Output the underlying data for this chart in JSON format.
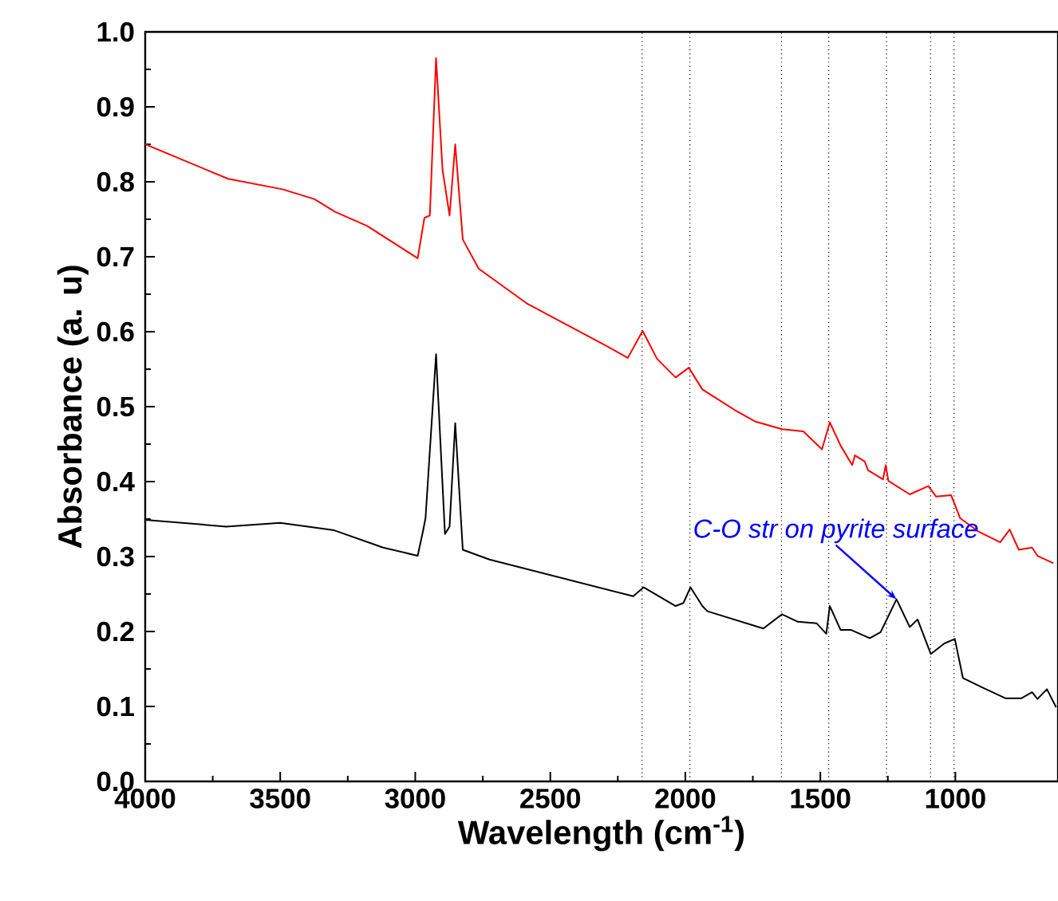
{
  "chart_data": {
    "type": "line",
    "xlabel": "Wavelength (cm$^{-1}$)",
    "ylabel": "Absorbance (a. u)",
    "xlim": [
      4000,
      620
    ],
    "ylim": [
      0,
      1
    ],
    "xticks": [
      4000,
      3500,
      3000,
      2500,
      2000,
      1500,
      1000
    ],
    "yticks": [
      {
        "value": 0,
        "label": "0.0"
      },
      {
        "value": 0.1,
        "label": "0.1"
      },
      {
        "value": 0.2,
        "label": "0.2"
      },
      {
        "value": 0.3,
        "label": "0.3"
      },
      {
        "value": 0.4,
        "label": "0.4"
      },
      {
        "value": 0.5,
        "label": "0.5"
      },
      {
        "value": 0.6,
        "label": "0.6"
      },
      {
        "value": 0.7,
        "label": "0.7"
      },
      {
        "value": 0.8,
        "label": "0.8"
      },
      {
        "value": 0.9,
        "label": "0.9"
      },
      {
        "value": 1.0,
        "label": "1.0"
      }
    ],
    "grid": false,
    "marker": "none",
    "line_style": "solid",
    "series": [
      {
        "color": "#ff0000",
        "x": [
          4000,
          3693,
          3492,
          3374,
          3297,
          3178,
          2991,
          2966,
          2946,
          2923,
          2899,
          2873,
          2852,
          2824,
          2765,
          2588,
          2292,
          2213,
          2158,
          2105,
          2036,
          1987,
          1937,
          1819,
          1740,
          1642,
          1563,
          1494,
          1465,
          1425,
          1382,
          1372,
          1336,
          1323,
          1268,
          1258,
          1248,
          1169,
          1100,
          1071,
          1016,
          982,
          913,
          834,
          799,
          765,
          716,
          696,
          637
        ],
        "values": [
          0.85,
          0.804,
          0.79,
          0.777,
          0.76,
          0.741,
          0.698,
          0.752,
          0.755,
          0.965,
          0.816,
          0.755,
          0.85,
          0.723,
          0.684,
          0.638,
          0.581,
          0.565,
          0.601,
          0.564,
          0.539,
          0.552,
          0.523,
          0.496,
          0.48,
          0.47,
          0.467,
          0.443,
          0.479,
          0.448,
          0.422,
          0.435,
          0.427,
          0.415,
          0.403,
          0.422,
          0.401,
          0.383,
          0.394,
          0.38,
          0.382,
          0.351,
          0.333,
          0.319,
          0.336,
          0.309,
          0.312,
          0.301,
          0.291
        ]
      },
      {
        "color": "#000000",
        "x": [
          4000,
          3700,
          3500,
          3300,
          3119,
          2991,
          2972,
          2962,
          2923,
          2890,
          2873,
          2852,
          2824,
          2725,
          2193,
          2154,
          2036,
          2007,
          1981,
          1937,
          1918,
          1711,
          1642,
          1583,
          1514,
          1478,
          1465,
          1425,
          1386,
          1317,
          1277,
          1218,
          1169,
          1140,
          1091,
          1041,
          1002,
          972,
          893,
          815,
          755,
          716,
          696,
          661,
          627
        ],
        "values": [
          0.349,
          0.34,
          0.345,
          0.335,
          0.312,
          0.301,
          0.333,
          0.351,
          0.57,
          0.33,
          0.34,
          0.478,
          0.309,
          0.296,
          0.247,
          0.259,
          0.234,
          0.238,
          0.259,
          0.234,
          0.227,
          0.204,
          0.223,
          0.213,
          0.211,
          0.197,
          0.234,
          0.202,
          0.202,
          0.191,
          0.199,
          0.243,
          0.206,
          0.216,
          0.17,
          0.184,
          0.19,
          0.138,
          0.124,
          0.111,
          0.111,
          0.119,
          0.11,
          0.123,
          0.099
        ]
      }
    ],
    "ref_lines": [
      {
        "axis": "x",
        "value": 2160,
        "color": "#000000",
        "line_style": "dotted"
      },
      {
        "axis": "x",
        "value": 1983,
        "color": "#000000",
        "line_style": "dotted"
      },
      {
        "axis": "x",
        "value": 1644,
        "color": "#000000",
        "line_style": "dotted"
      },
      {
        "axis": "x",
        "value": 1469,
        "color": "#000000",
        "line_style": "dotted"
      },
      {
        "axis": "x",
        "value": 1255,
        "color": "#000000",
        "line_style": "dotted"
      },
      {
        "axis": "x",
        "value": 1092,
        "color": "#000000",
        "line_style": "dotted"
      },
      {
        "axis": "x",
        "value": 1005,
        "color": "#000000",
        "line_style": "dotted"
      }
    ],
    "annotations": [
      {
        "text": "C-O str on pyrite surface",
        "x": 1218,
        "y": 0.243
      }
    ]
  }
}
